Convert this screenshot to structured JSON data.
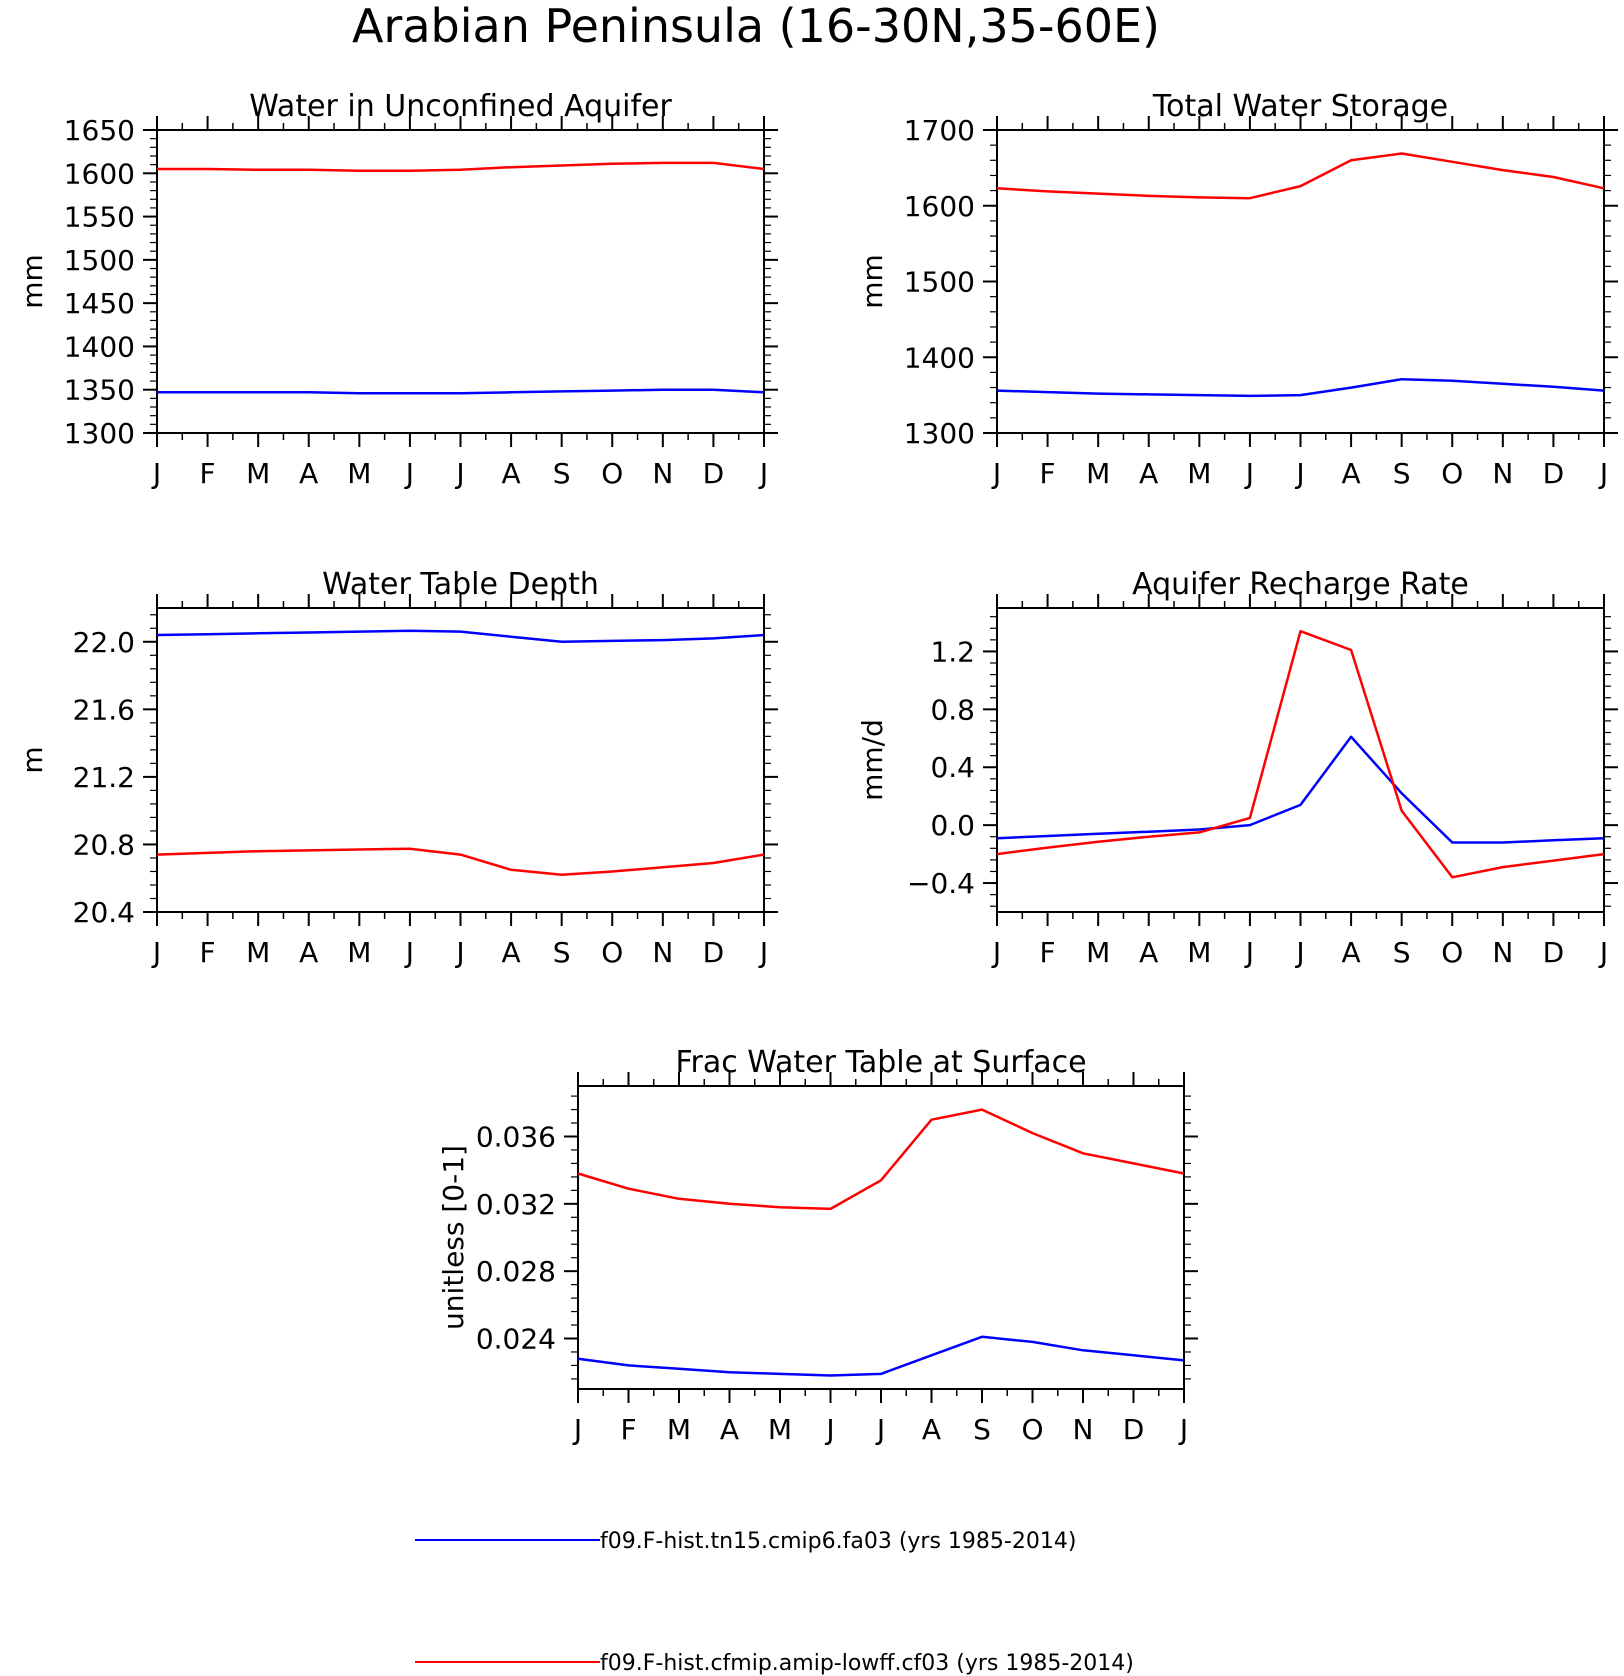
{
  "page_title": "Arabian Peninsula (16-30N,35-60E)",
  "months": [
    "J",
    "F",
    "M",
    "A",
    "M",
    "J",
    "J",
    "A",
    "S",
    "O",
    "N",
    "D",
    "J"
  ],
  "colors": {
    "blue": "#0000ff",
    "red": "#ff0000",
    "axis": "#000000"
  },
  "legend": [
    {
      "label": "f09.F-hist.tn15.cmip6.fa03 (yrs 1985-2014)",
      "color": "#0000ff"
    },
    {
      "label": "f09.F-hist.cfmip.amip-lowff.cf03 (yrs 1985-2014)",
      "color": "#ff0000"
    }
  ],
  "chart_data": [
    {
      "type": "line",
      "title": "Water in Unconfined Aquifer",
      "ylabel": "mm",
      "ylim": [
        1300,
        1650
      ],
      "yticks": [
        "1300",
        "1350",
        "1400",
        "1450",
        "1500",
        "1550",
        "1600",
        "1650"
      ],
      "x": [
        "J",
        "F",
        "M",
        "A",
        "M",
        "J",
        "J",
        "A",
        "S",
        "O",
        "N",
        "D",
        "J"
      ],
      "series": [
        {
          "color": "#0000ff",
          "values": [
            1347,
            1347,
            1347,
            1347,
            1346,
            1346,
            1346,
            1347,
            1348,
            1349,
            1350,
            1350,
            1347
          ]
        },
        {
          "color": "#ff0000",
          "values": [
            1605,
            1605,
            1604,
            1604,
            1603,
            1603,
            1604,
            1607,
            1609,
            1611,
            1612,
            1612,
            1605
          ]
        }
      ]
    },
    {
      "type": "line",
      "title": "Total Water Storage",
      "ylabel": "mm",
      "ylim": [
        1300,
        1700
      ],
      "yticks": [
        "1300",
        "1400",
        "1500",
        "1600",
        "1700"
      ],
      "x": [
        "J",
        "F",
        "M",
        "A",
        "M",
        "J",
        "J",
        "A",
        "S",
        "O",
        "N",
        "D",
        "J"
      ],
      "series": [
        {
          "color": "#0000ff",
          "values": [
            1356,
            1354,
            1352,
            1351,
            1350,
            1349,
            1350,
            1360,
            1371,
            1369,
            1365,
            1361,
            1356
          ]
        },
        {
          "color": "#ff0000",
          "values": [
            1623,
            1619,
            1616,
            1613,
            1611,
            1610,
            1626,
            1660,
            1669,
            1658,
            1647,
            1638,
            1623
          ]
        }
      ]
    },
    {
      "type": "line",
      "title": "Water Table Depth",
      "ylabel": "m",
      "ylim": [
        20.4,
        22.2
      ],
      "yticks": [
        "20.4",
        "20.8",
        "21.2",
        "21.6",
        "22.0"
      ],
      "x": [
        "J",
        "F",
        "M",
        "A",
        "M",
        "J",
        "J",
        "A",
        "S",
        "O",
        "N",
        "D",
        "J"
      ],
      "series": [
        {
          "color": "#0000ff",
          "values": [
            22.04,
            22.045,
            22.05,
            22.055,
            22.06,
            22.065,
            22.06,
            22.03,
            22.0,
            22.005,
            22.01,
            22.02,
            22.04
          ]
        },
        {
          "color": "#ff0000",
          "values": [
            20.74,
            20.75,
            20.76,
            20.765,
            20.77,
            20.775,
            20.74,
            20.65,
            20.62,
            20.64,
            20.665,
            20.69,
            20.74
          ]
        }
      ]
    },
    {
      "type": "line",
      "title": "Aquifer Recharge Rate",
      "ylabel": "mm/d",
      "ylim": [
        -0.6,
        1.5
      ],
      "yticks": [
        "-0.4",
        "0.0",
        "0.4",
        "0.8",
        "1.2"
      ],
      "x": [
        "J",
        "F",
        "M",
        "A",
        "M",
        "J",
        "J",
        "A",
        "S",
        "O",
        "N",
        "D",
        "J"
      ],
      "series": [
        {
          "color": "#0000ff",
          "values": [
            -0.09,
            -0.075,
            -0.06,
            -0.045,
            -0.03,
            0.0,
            0.14,
            0.61,
            0.22,
            -0.12,
            -0.12,
            -0.105,
            -0.09
          ]
        },
        {
          "color": "#ff0000",
          "values": [
            -0.2,
            -0.155,
            -0.115,
            -0.08,
            -0.05,
            0.05,
            1.34,
            1.21,
            0.1,
            -0.36,
            -0.29,
            -0.245,
            -0.2
          ]
        }
      ]
    },
    {
      "type": "line",
      "title": "Frac Water Table at Surface",
      "ylabel": "unitless [0-1]",
      "ylim": [
        0.021,
        0.039
      ],
      "yticks": [
        "0.024",
        "0.028",
        "0.032",
        "0.036"
      ],
      "x": [
        "J",
        "F",
        "M",
        "A",
        "M",
        "J",
        "J",
        "A",
        "S",
        "O",
        "N",
        "D",
        "J"
      ],
      "series": [
        {
          "color": "#0000ff",
          "values": [
            0.0228,
            0.0224,
            0.0222,
            0.022,
            0.0219,
            0.0218,
            0.0219,
            0.023,
            0.0241,
            0.0238,
            0.0233,
            0.023,
            0.0227
          ]
        },
        {
          "color": "#ff0000",
          "values": [
            0.0338,
            0.0329,
            0.0323,
            0.032,
            0.0318,
            0.0317,
            0.0334,
            0.037,
            0.0376,
            0.0362,
            0.035,
            0.0344,
            0.0338
          ]
        }
      ]
    }
  ]
}
